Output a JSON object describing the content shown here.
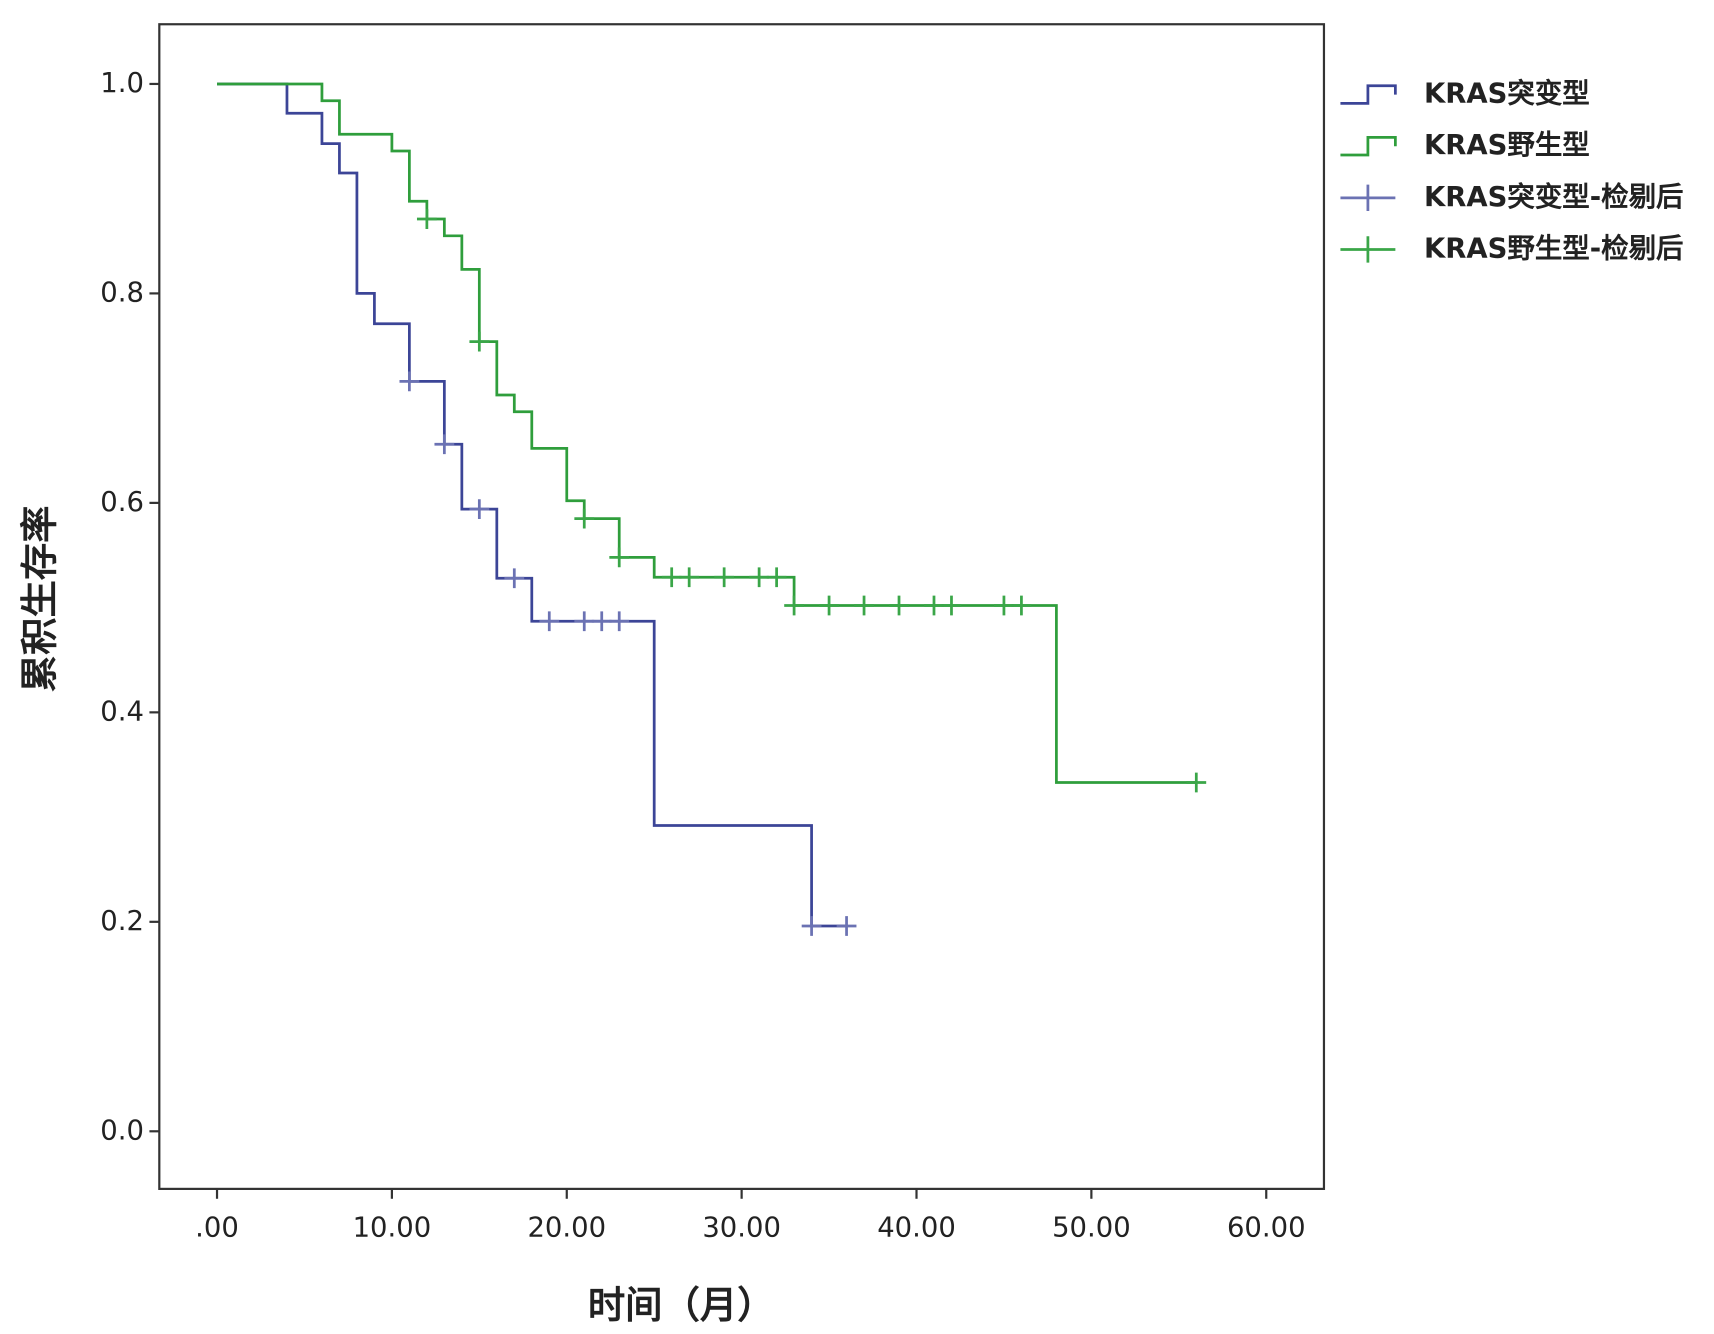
{
  "chart_data": {
    "type": "step",
    "xlabel": "时间（月）",
    "ylabel": "累积生存率",
    "xlim": [
      -3.3,
      63.3
    ],
    "ylim": [
      -0.055,
      1.057
    ],
    "xticks": [
      {
        "value": 0,
        "label": ".00"
      },
      {
        "value": 10,
        "label": "10.00"
      },
      {
        "value": 20,
        "label": "20.00"
      },
      {
        "value": 30,
        "label": "30.00"
      },
      {
        "value": 40,
        "label": "40.00"
      },
      {
        "value": 50,
        "label": "50.00"
      },
      {
        "value": 60,
        "label": "60.00"
      }
    ],
    "yticks": [
      {
        "value": 0,
        "label": "0.0"
      },
      {
        "value": 0.2,
        "label": "0.2"
      },
      {
        "value": 0.4,
        "label": "0.4"
      },
      {
        "value": 0.6,
        "label": "0.6"
      },
      {
        "value": 0.8,
        "label": "0.8"
      },
      {
        "value": 1,
        "label": "1.0"
      }
    ],
    "legend": "outside-right-top",
    "series": [
      {
        "name": "KRAS突变型",
        "color": "#3c4597",
        "style": "step",
        "x": [
          0,
          4,
          6,
          7,
          8,
          9,
          11,
          13,
          14,
          16,
          18,
          25,
          34,
          36
        ],
        "values": [
          1.0,
          0.972,
          0.943,
          0.915,
          0.8,
          0.771,
          0.716,
          0.656,
          0.594,
          0.528,
          0.487,
          0.292,
          0.196,
          0.196
        ]
      },
      {
        "name": "KRAS野生型",
        "color": "#2f9e3c",
        "style": "step",
        "x": [
          0,
          6,
          7,
          10,
          11,
          12,
          13,
          14,
          15,
          16,
          17,
          18,
          20,
          21,
          23,
          25,
          33,
          48,
          56
        ],
        "values": [
          1.0,
          0.984,
          0.952,
          0.936,
          0.888,
          0.871,
          0.855,
          0.823,
          0.754,
          0.703,
          0.687,
          0.652,
          0.602,
          0.585,
          0.548,
          0.529,
          0.502,
          0.333,
          0.333
        ]
      },
      {
        "name": "KRAS突变型-检剔后",
        "color": "#6b72b3",
        "style": "censor",
        "x": [
          11,
          13,
          15,
          17,
          19,
          21,
          22,
          23,
          34,
          36
        ],
        "values": [
          0.716,
          0.656,
          0.594,
          0.528,
          0.487,
          0.487,
          0.487,
          0.487,
          0.196,
          0.196
        ]
      },
      {
        "name": "KRAS野生型-检剔后",
        "color": "#3aa648",
        "style": "censor",
        "x": [
          12,
          15,
          21,
          23,
          26,
          27,
          29,
          31,
          32,
          33,
          35,
          37,
          39,
          41,
          42,
          45,
          46,
          56
        ],
        "values": [
          0.871,
          0.754,
          0.585,
          0.548,
          0.529,
          0.529,
          0.529,
          0.529,
          0.529,
          0.502,
          0.502,
          0.502,
          0.502,
          0.502,
          0.502,
          0.502,
          0.502,
          0.333
        ]
      }
    ]
  }
}
